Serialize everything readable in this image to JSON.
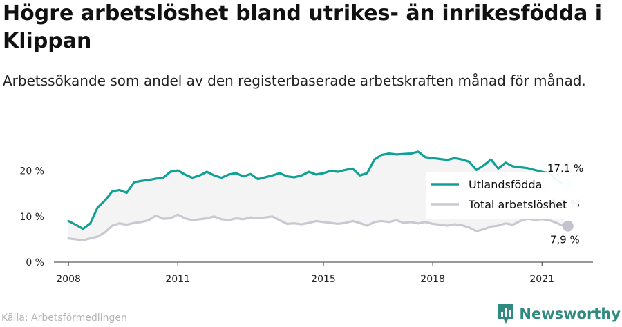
{
  "title": "Högre arbetslöshet bland utrikes- än inrikesfödda i Klippan",
  "subtitle": "Arbetssökande som andel av den registerbaserade arbetskraften månad för månad.",
  "source": "Källa: Arbetsförmedlingen",
  "brand": {
    "name": "Newsworthy",
    "logo_icon": "bar-chart-logo-icon"
  },
  "colors": {
    "foreign": "#12a095",
    "total": "#c9c9d3",
    "band": "#ececec"
  },
  "chart_data": {
    "type": "line",
    "ylim": [
      0,
      26
    ],
    "yticks": [
      {
        "value": 0,
        "label": "0 %"
      },
      {
        "value": 10,
        "label": "10 %"
      },
      {
        "value": 20,
        "label": "20 %"
      }
    ],
    "xlim": [
      2007.6,
      2022.4
    ],
    "xticks": [
      {
        "value": 2008,
        "label": "2008"
      },
      {
        "value": 2011,
        "label": "2011"
      },
      {
        "value": 2015,
        "label": "2015"
      },
      {
        "value": 2018,
        "label": "2018"
      },
      {
        "value": 2021,
        "label": "2021"
      }
    ],
    "legend_position": "right",
    "series": [
      {
        "name": "Utlandsfödda",
        "color": "#12a095",
        "end_label": "17,1 %",
        "x": [
          2008.0,
          2008.2,
          2008.4,
          2008.6,
          2008.8,
          2009.0,
          2009.2,
          2009.4,
          2009.6,
          2009.8,
          2010.0,
          2010.2,
          2010.4,
          2010.6,
          2010.8,
          2011.0,
          2011.2,
          2011.4,
          2011.6,
          2011.8,
          2012.0,
          2012.2,
          2012.4,
          2012.6,
          2012.8,
          2013.0,
          2013.2,
          2013.4,
          2013.6,
          2013.8,
          2014.0,
          2014.2,
          2014.4,
          2014.6,
          2014.8,
          2015.0,
          2015.2,
          2015.4,
          2015.6,
          2015.8,
          2016.0,
          2016.2,
          2016.4,
          2016.6,
          2016.8,
          2017.0,
          2017.2,
          2017.4,
          2017.6,
          2017.8,
          2018.0,
          2018.2,
          2018.4,
          2018.6,
          2018.8,
          2019.0,
          2019.2,
          2019.4,
          2019.6,
          2019.8,
          2020.0,
          2020.2,
          2020.4,
          2020.6,
          2020.8,
          2021.0,
          2021.2,
          2021.4,
          2021.6
        ],
        "values": [
          9.0,
          8.2,
          7.3,
          8.5,
          12.0,
          13.5,
          15.5,
          15.8,
          15.2,
          17.5,
          17.8,
          18.0,
          18.3,
          18.5,
          19.8,
          20.1,
          19.2,
          18.5,
          19.0,
          19.8,
          19.0,
          18.5,
          19.2,
          19.5,
          18.8,
          19.3,
          18.2,
          18.6,
          19.0,
          19.5,
          18.8,
          18.6,
          19.0,
          19.8,
          19.2,
          19.5,
          20.0,
          19.8,
          20.2,
          20.5,
          19.0,
          19.5,
          22.5,
          23.5,
          23.8,
          23.6,
          23.7,
          23.8,
          24.2,
          23.0,
          22.8,
          22.6,
          22.4,
          22.8,
          22.5,
          22.0,
          20.2,
          21.2,
          22.5,
          20.5,
          21.8,
          21.0,
          20.8,
          20.6,
          20.2,
          19.8,
          19.5,
          18.0,
          17.1
        ]
      },
      {
        "name": "Total arbetslöshet",
        "color": "#c9c9d3",
        "end_label": "7,9 %",
        "x": [
          2008.0,
          2008.2,
          2008.4,
          2008.6,
          2008.8,
          2009.0,
          2009.2,
          2009.4,
          2009.6,
          2009.8,
          2010.0,
          2010.2,
          2010.4,
          2010.6,
          2010.8,
          2011.0,
          2011.2,
          2011.4,
          2011.6,
          2011.8,
          2012.0,
          2012.2,
          2012.4,
          2012.6,
          2012.8,
          2013.0,
          2013.2,
          2013.4,
          2013.6,
          2013.8,
          2014.0,
          2014.2,
          2014.4,
          2014.6,
          2014.8,
          2015.0,
          2015.2,
          2015.4,
          2015.6,
          2015.8,
          2016.0,
          2016.2,
          2016.4,
          2016.6,
          2016.8,
          2017.0,
          2017.2,
          2017.4,
          2017.6,
          2017.8,
          2018.0,
          2018.2,
          2018.4,
          2018.6,
          2018.8,
          2019.0,
          2019.2,
          2019.4,
          2019.6,
          2019.8,
          2020.0,
          2020.2,
          2020.4,
          2020.6,
          2020.8,
          2021.0,
          2021.2,
          2021.4,
          2021.6
        ],
        "values": [
          5.2,
          5.0,
          4.8,
          5.2,
          5.6,
          6.5,
          8.0,
          8.5,
          8.2,
          8.6,
          8.8,
          9.2,
          10.2,
          9.5,
          9.6,
          10.4,
          9.6,
          9.2,
          9.4,
          9.6,
          10.0,
          9.4,
          9.2,
          9.6,
          9.4,
          9.8,
          9.6,
          9.8,
          10.0,
          9.2,
          8.4,
          8.5,
          8.3,
          8.6,
          9.0,
          8.8,
          8.6,
          8.4,
          8.6,
          9.0,
          8.6,
          8.0,
          8.8,
          9.0,
          8.8,
          9.2,
          8.6,
          8.8,
          8.5,
          8.8,
          8.4,
          8.2,
          8.0,
          8.3,
          8.1,
          7.6,
          6.8,
          7.2,
          7.8,
          8.0,
          8.5,
          8.2,
          9.0,
          9.5,
          9.3,
          9.4,
          9.2,
          8.6,
          7.9
        ]
      }
    ],
    "annotations": [
      {
        "text": "9,2 %",
        "x": 2021.6,
        "y": 12.8
      }
    ]
  }
}
